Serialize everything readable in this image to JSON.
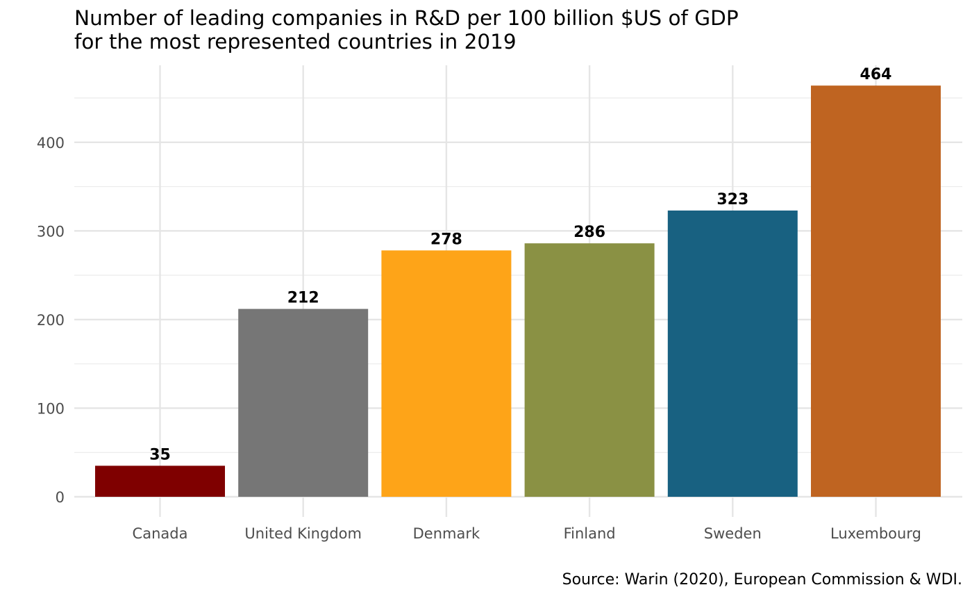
{
  "chart_data": {
    "type": "bar",
    "title_lines": [
      "Number of leading companies in R&D per 100 billion $US of GDP",
      "for the most represented countries in 2019"
    ],
    "xlabel": "",
    "ylabel": "",
    "categories": [
      "Canada",
      "United Kingdom",
      "Denmark",
      "Finland",
      "Sweden",
      "Luxembourg"
    ],
    "values": [
      35,
      212,
      278,
      286,
      323,
      464
    ],
    "data_labels": [
      "35",
      "212",
      "278",
      "286",
      "323",
      "464"
    ],
    "colors": [
      "#7f0000",
      "#767676",
      "#fea418",
      "#8a9144",
      "#186181",
      "#bf6421"
    ],
    "y_ticks": [
      0,
      100,
      200,
      300,
      400
    ],
    "ylim": [
      0,
      486
    ],
    "grid": true,
    "legend": "none",
    "caption": "Source: Warin (2020), European Commission & WDI."
  }
}
